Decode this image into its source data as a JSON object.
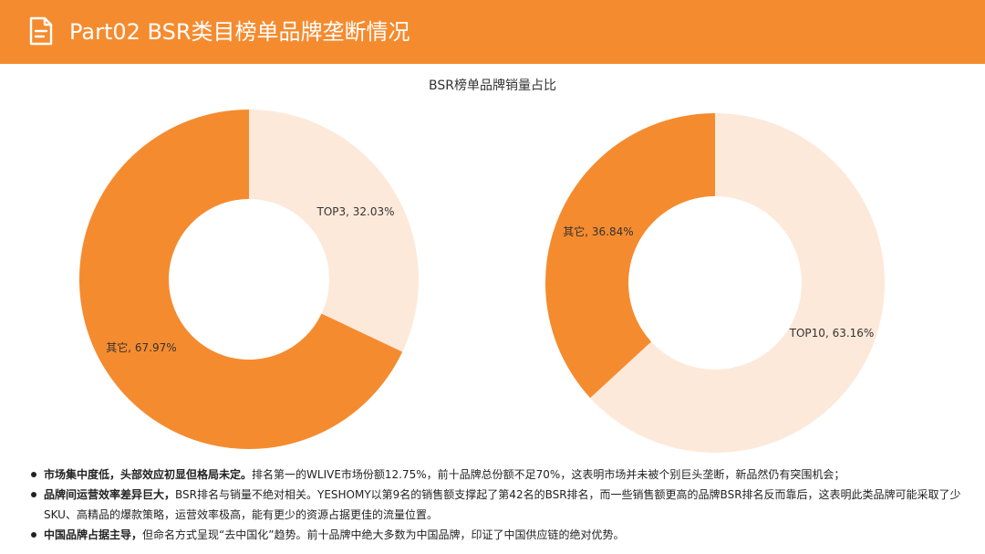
{
  "header": {
    "title": "Part02 BSR类目榜单品牌垄断情况",
    "icon": "document-icon",
    "color": "#F58B2F"
  },
  "chart_data": [
    {
      "type": "pie",
      "variant": "donut",
      "title": "BSR榜单品牌销量占比",
      "categories": [
        "TOP3",
        "其它"
      ],
      "values": [
        32.03,
        67.97
      ],
      "labels": [
        "TOP3, 32.03%",
        "其它, 67.97%"
      ],
      "colors": [
        "#FDE9DA",
        "#F58B2F"
      ]
    },
    {
      "type": "pie",
      "variant": "donut",
      "title": "",
      "categories": [
        "TOP10",
        "其它"
      ],
      "values": [
        63.16,
        36.84
      ],
      "labels": [
        "TOP10, 63.16%",
        "其它, 36.84%"
      ],
      "colors": [
        "#FDE9DA",
        "#F58B2F"
      ]
    }
  ],
  "notes": [
    {
      "bold": "市场集中度低，头部效应初显但格局未定。",
      "text": "排名第一的WLIVE市场份额12.75%，前十品牌总份额不足70%，这表明市场并未被个别巨头垄断，新品然仍有突围机会；"
    },
    {
      "bold": "品牌间运营效率差异巨大，",
      "text": "BSR排名与销量不绝对相关。YESHOMY以第9名的销售额支撑起了第42名的BSR排名，而一些销售额更高的品牌BSR排名反而靠后，这表明此类品牌可能采取了少SKU、高精品的爆款策略，运营效率极高，能有更少的资源占据更佳的流量位置。"
    },
    {
      "bold": "中国品牌占据主导，",
      "text": "但命名方式呈现“去中国化”趋势。前十品牌中绝大多数为中国品牌，印证了中国供应链的绝对优势。"
    }
  ]
}
